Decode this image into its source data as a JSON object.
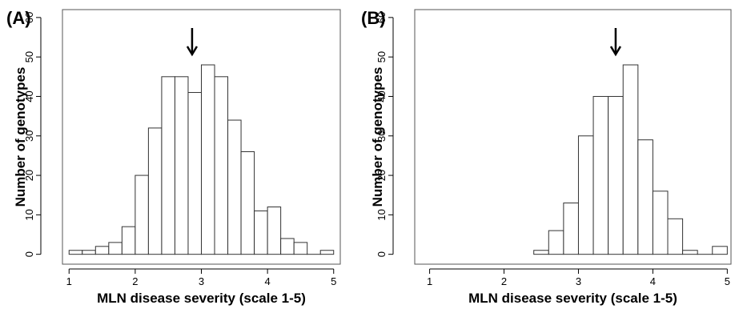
{
  "chart_data": [
    {
      "type": "bar",
      "panel_label": "(A)",
      "xlabel": "MLN disease severity (scale 1-5)",
      "ylabel": "Number of genotypes",
      "xlim": [
        0.9,
        5.1
      ],
      "ylim": [
        -2.5,
        62
      ],
      "xticks": [
        "1",
        "2",
        "3",
        "4",
        "5"
      ],
      "yticks": [
        "0",
        "10",
        "20",
        "30",
        "40",
        "50",
        "60"
      ],
      "bin_width": 0.2,
      "bins": [
        {
          "x0": 1.0,
          "x1": 1.2,
          "count": 1
        },
        {
          "x0": 1.2,
          "x1": 1.4,
          "count": 1
        },
        {
          "x0": 1.4,
          "x1": 1.6,
          "count": 2
        },
        {
          "x0": 1.6,
          "x1": 1.8,
          "count": 3
        },
        {
          "x0": 1.8,
          "x1": 2.0,
          "count": 7
        },
        {
          "x0": 2.0,
          "x1": 2.2,
          "count": 20
        },
        {
          "x0": 2.2,
          "x1": 2.4,
          "count": 32
        },
        {
          "x0": 2.4,
          "x1": 2.6,
          "count": 45
        },
        {
          "x0": 2.6,
          "x1": 2.8,
          "count": 45
        },
        {
          "x0": 2.8,
          "x1": 3.0,
          "count": 41
        },
        {
          "x0": 3.0,
          "x1": 3.2,
          "count": 48
        },
        {
          "x0": 3.2,
          "x1": 3.4,
          "count": 45
        },
        {
          "x0": 3.4,
          "x1": 3.6,
          "count": 34
        },
        {
          "x0": 3.6,
          "x1": 3.8,
          "count": 26
        },
        {
          "x0": 3.8,
          "x1": 4.0,
          "count": 11
        },
        {
          "x0": 4.0,
          "x1": 4.2,
          "count": 12
        },
        {
          "x0": 4.2,
          "x1": 4.4,
          "count": 4
        },
        {
          "x0": 4.4,
          "x1": 4.6,
          "count": 3
        },
        {
          "x0": 4.6,
          "x1": 4.8,
          "count": 0
        },
        {
          "x0": 4.8,
          "x1": 5.0,
          "count": 1
        }
      ],
      "arrow_x": 2.86
    },
    {
      "type": "bar",
      "panel_label": "(B)",
      "xlabel": "MLN disease severity (scale 1-5)",
      "ylabel": "Number of genotypes",
      "xlim": [
        0.8,
        5.05
      ],
      "ylim": [
        -2.5,
        62
      ],
      "xticks": [
        "1",
        "2",
        "3",
        "4",
        "5"
      ],
      "yticks": [
        "0",
        "10",
        "20",
        "30",
        "40",
        "50",
        "60"
      ],
      "bin_width": 0.2,
      "bins": [
        {
          "x0": 2.4,
          "x1": 2.6,
          "count": 1
        },
        {
          "x0": 2.6,
          "x1": 2.8,
          "count": 6
        },
        {
          "x0": 2.8,
          "x1": 3.0,
          "count": 13
        },
        {
          "x0": 3.0,
          "x1": 3.2,
          "count": 30
        },
        {
          "x0": 3.2,
          "x1": 3.4,
          "count": 40
        },
        {
          "x0": 3.4,
          "x1": 3.6,
          "count": 40
        },
        {
          "x0": 3.6,
          "x1": 3.8,
          "count": 48
        },
        {
          "x0": 3.8,
          "x1": 4.0,
          "count": 29
        },
        {
          "x0": 4.0,
          "x1": 4.2,
          "count": 16
        },
        {
          "x0": 4.2,
          "x1": 4.4,
          "count": 9
        },
        {
          "x0": 4.4,
          "x1": 4.6,
          "count": 1
        },
        {
          "x0": 4.6,
          "x1": 4.8,
          "count": 0
        },
        {
          "x0": 4.8,
          "x1": 5.0,
          "count": 2
        }
      ],
      "arrow_x": 3.5
    }
  ]
}
